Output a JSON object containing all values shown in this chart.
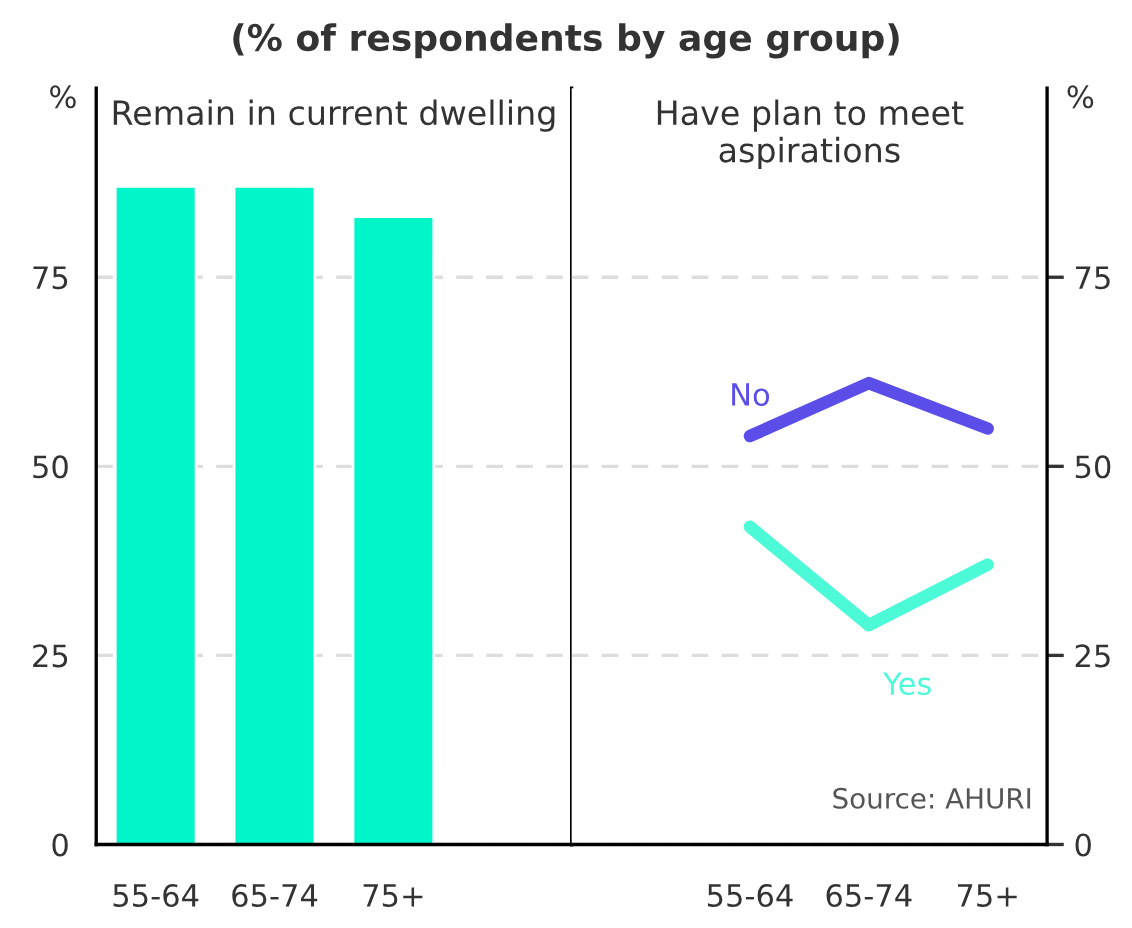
{
  "chart_data": [
    {
      "type": "bar",
      "title": "Remain in current dwelling",
      "subtitle": "(% of respondents by age group)",
      "ylabel": "%",
      "categories": [
        "55-64",
        "65-74",
        "75+",
        null
      ],
      "series": [
        {
          "color": "#00f5c8",
          "values": [
            87,
            87,
            83,
            null
          ]
        }
      ],
      "ylim": [
        0,
        100
      ],
      "yticks": [
        0,
        25,
        50,
        75
      ],
      "grid": "y",
      "legend": false,
      "tick_labels": "xy"
    },
    {
      "type": "line",
      "title": "Have plan to meet aspirations",
      "ylabel": "%",
      "categories": [
        null,
        "55-64",
        "65-74",
        "75+"
      ],
      "series": [
        {
          "name": "No",
          "color": "#5b4ee8",
          "values": [
            null,
            54,
            61,
            55
          ]
        },
        {
          "name": "Yes",
          "color": "#4dfad7",
          "values": [
            null,
            42,
            29,
            37
          ]
        }
      ],
      "ylim": [
        0,
        100
      ],
      "yticks": [
        0,
        25,
        50,
        75
      ],
      "grid": "y",
      "legend": false,
      "annotations": [
        "Source: AHURI"
      ]
    }
  ]
}
